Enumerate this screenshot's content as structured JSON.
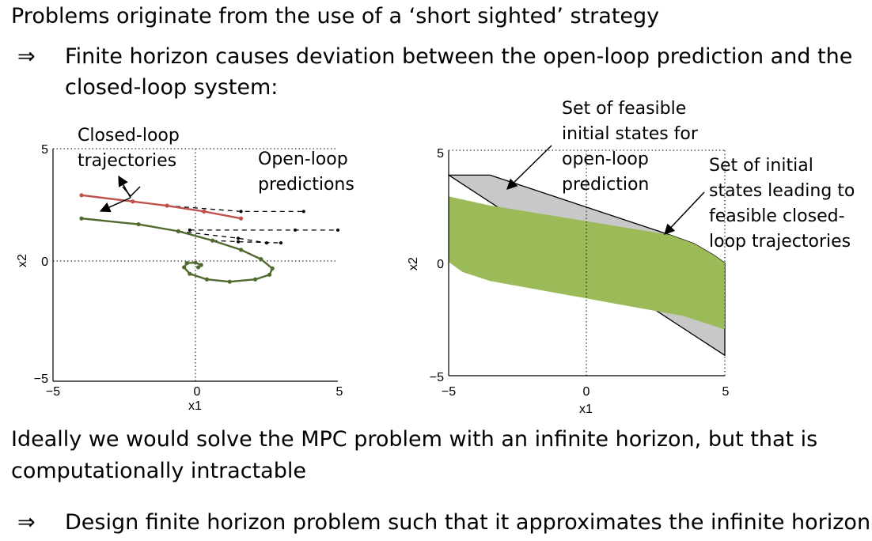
{
  "text": {
    "line1": "Problems originate from the use of a ‘short sighted’ strategy",
    "bullet1_symbol": "⇒",
    "bullet1_line1": "Finite horizon causes deviation between the open-loop prediction and the",
    "bullet1_line2": "closed-loop system:",
    "line2a": "Ideally we would solve the MPC problem with an infinite horizon, but that is",
    "line2b": "computationally intractable",
    "bullet2_symbol": "⇒",
    "bullet2": "Design finite horizon problem such that it approximates the infinite horizon"
  },
  "colors": {
    "closed_loop": "#4f6a2c",
    "first_closed_loop": "#c0504d",
    "feasible_closed": "#9bbb59",
    "feasible_open": "#c8c8c8"
  },
  "chart_data": [
    {
      "type": "line",
      "xlim": [
        -5,
        5
      ],
      "ylim": [
        -5,
        5
      ],
      "xlabel": "x1",
      "ylabel": "x2",
      "x_ticks": [
        "−5",
        "0",
        "5"
      ],
      "y_ticks": [
        "5",
        "0",
        "−5"
      ],
      "grid": "dotted lines at x=0 and y=0",
      "annotations": [
        "Closed-loop",
        "trajectories",
        "Open-loop",
        "predictions"
      ],
      "series": [
        {
          "role": "first-closed-loop",
          "points": [
            [
              -4,
              3
            ],
            [
              -2.2,
              2.73
            ],
            [
              -1,
              2.55
            ],
            [
              0.3,
              2.3
            ],
            [
              1.6,
              2.0
            ]
          ]
        },
        {
          "role": "closed-loop",
          "points": [
            [
              -4,
              2
            ],
            [
              -2,
              1.75
            ],
            [
              -0.6,
              1.45
            ],
            [
              0.6,
              1.05
            ],
            [
              1.6,
              0.65
            ],
            [
              2.3,
              0.25
            ],
            [
              2.7,
              -0.15
            ],
            [
              2.6,
              -0.42
            ],
            [
              2.1,
              -0.62
            ],
            [
              1.2,
              -0.72
            ],
            [
              0.4,
              -0.62
            ],
            [
              -0.2,
              -0.38
            ],
            [
              -0.4,
              -0.1
            ],
            [
              -0.3,
              0.08
            ],
            [
              0.0,
              0.1
            ],
            [
              0.2,
              0.0
            ],
            [
              0.1,
              -0.1
            ]
          ]
        }
      ],
      "open_loop_predictions": [
        [
          [
            -1,
            2.55
          ],
          [
            1.6,
            2.3
          ],
          [
            3.8,
            2.3
          ]
        ],
        [
          [
            -0.2,
            1.5
          ],
          [
            3.5,
            1.5
          ],
          [
            5.0,
            1.5
          ]
        ],
        [
          [
            -0.6,
            1.45
          ],
          [
            1.5,
            1.15
          ],
          [
            2.5,
            0.95
          ]
        ],
        [
          [
            0.6,
            1.05
          ],
          [
            1.5,
            1.0
          ],
          [
            3.0,
            0.95
          ]
        ]
      ]
    },
    {
      "type": "area",
      "xlim": [
        -5,
        5
      ],
      "ylim": [
        -5,
        5
      ],
      "xlabel": "x1",
      "ylabel": "x2",
      "x_ticks": [
        "−5",
        "0",
        "5"
      ],
      "y_ticks": [
        "5",
        "0",
        "−5"
      ],
      "grid": "dotted lines at x=0 and dotted frame",
      "annotations": [
        "Set of feasible",
        "initial states for",
        "open-loop",
        "prediction",
        "Set of initial",
        "states leading to",
        "feasible closed-",
        "loop trajectories"
      ],
      "regions": [
        {
          "role": "feasible-open-loop",
          "polygon": [
            [
              -5,
              3.9
            ],
            [
              5,
              -4.1
            ],
            [
              5,
              0
            ],
            [
              4.6,
              0.35
            ],
            [
              3.9,
              0.85
            ],
            [
              3,
              1.25
            ],
            [
              -3.5,
              3.9
            ],
            [
              -5,
              3.9
            ]
          ]
        },
        {
          "role": "feasible-closed-loop",
          "polygon": [
            [
              -5,
              2.95
            ],
            [
              -3.5,
              2.55
            ],
            [
              3,
              1.25
            ],
            [
              3.9,
              0.85
            ],
            [
              4.6,
              0.35
            ],
            [
              5,
              0
            ],
            [
              5,
              -2.95
            ],
            [
              3.5,
              -2.35
            ],
            [
              -3.5,
              -0.8
            ],
            [
              -4.5,
              -0.4
            ],
            [
              -5,
              0.05
            ]
          ]
        }
      ]
    }
  ]
}
